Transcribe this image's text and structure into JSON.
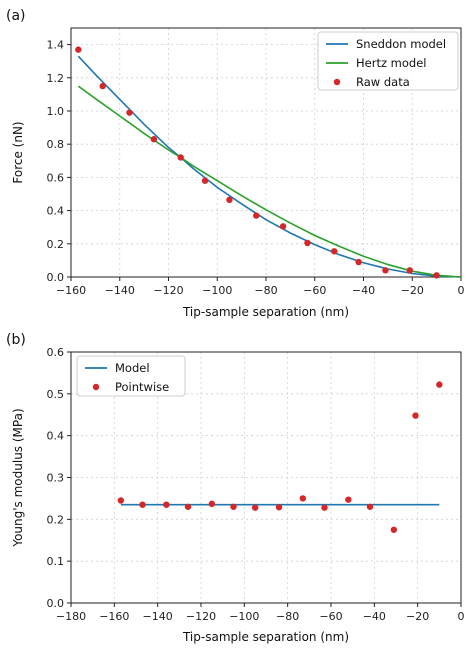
{
  "chart_data": [
    {
      "type": "line",
      "panel_label": "(a)",
      "xlabel": "Tip-sample separation (nm)",
      "ylabel": "Force (nN)",
      "xlim": [
        -160,
        0
      ],
      "ylim": [
        0,
        1.5
      ],
      "xticks": [
        -160,
        -140,
        -120,
        -100,
        -80,
        -60,
        -40,
        -20,
        0
      ],
      "xtick_labels": [
        "−160",
        "−140",
        "−120",
        "−100",
        "−80",
        "−60",
        "−40",
        "−20",
        "0"
      ],
      "yticks": [
        0.0,
        0.2,
        0.4,
        0.6,
        0.8,
        1.0,
        1.2,
        1.4
      ],
      "ytick_labels": [
        "0.0",
        "0.2",
        "0.4",
        "0.6",
        "0.8",
        "1.0",
        "1.2",
        "1.4"
      ],
      "grid": true,
      "legend": "top-right",
      "series": [
        {
          "name": "Sneddon model",
          "kind": "line",
          "color": "#1f77b4",
          "x": [
            -157,
            -150,
            -140,
            -130,
            -120,
            -115,
            -110,
            -100,
            -90,
            -80,
            -70,
            -60,
            -50,
            -40,
            -30,
            -20,
            -10,
            0
          ],
          "y": [
            1.33,
            1.22,
            1.07,
            0.92,
            0.78,
            0.72,
            0.655,
            0.54,
            0.44,
            0.345,
            0.265,
            0.195,
            0.135,
            0.086,
            0.048,
            0.021,
            0.005,
            0.0
          ]
        },
        {
          "name": "Hertz model",
          "kind": "line",
          "color": "#2ca02c",
          "x": [
            -157,
            -150,
            -140,
            -130,
            -120,
            -115,
            -110,
            -100,
            -90,
            -80,
            -70,
            -60,
            -50,
            -40,
            -30,
            -20,
            -10,
            0
          ],
          "y": [
            1.15,
            1.075,
            0.97,
            0.865,
            0.765,
            0.72,
            0.67,
            0.58,
            0.49,
            0.405,
            0.325,
            0.25,
            0.185,
            0.125,
            0.075,
            0.035,
            0.01,
            0.0
          ]
        },
        {
          "name": "Raw data",
          "kind": "scatter",
          "color": "#d62728",
          "x": [
            -157,
            -147,
            -136,
            -126,
            -115,
            -105,
            -95,
            -84,
            -73,
            -63,
            -52,
            -42,
            -31,
            -21,
            -10
          ],
          "y": [
            1.37,
            1.15,
            0.99,
            0.83,
            0.72,
            0.58,
            0.465,
            0.37,
            0.305,
            0.205,
            0.155,
            0.09,
            0.04,
            0.04,
            0.01
          ]
        }
      ]
    },
    {
      "type": "scatter",
      "panel_label": "(b)",
      "xlabel": "Tip-sample separation (nm)",
      "ylabel": "Young's modulus (MPa)",
      "xlim": [
        -180,
        0
      ],
      "ylim": [
        0,
        0.6
      ],
      "xticks": [
        -180,
        -160,
        -140,
        -120,
        -100,
        -80,
        -60,
        -40,
        -20,
        0
      ],
      "xtick_labels": [
        "−180",
        "−160",
        "−140",
        "−120",
        "−100",
        "−80",
        "−60",
        "−40",
        "−20",
        "0"
      ],
      "yticks": [
        0.0,
        0.1,
        0.2,
        0.3,
        0.4,
        0.5,
        0.6
      ],
      "ytick_labels": [
        "0.0",
        "0.1",
        "0.2",
        "0.3",
        "0.4",
        "0.5",
        "0.6"
      ],
      "grid": true,
      "legend": "top-left",
      "series": [
        {
          "name": "Model",
          "kind": "line",
          "color": "#1f77b4",
          "x": [
            -157,
            -10
          ],
          "y": [
            0.235,
            0.235
          ]
        },
        {
          "name": "Pointwise",
          "kind": "scatter",
          "color": "#d62728",
          "x": [
            -157,
            -147,
            -136,
            -126,
            -115,
            -105,
            -95,
            -84,
            -73,
            -63,
            -52,
            -42,
            -31,
            -21,
            -10
          ],
          "y": [
            0.245,
            0.235,
            0.235,
            0.23,
            0.237,
            0.23,
            0.228,
            0.229,
            0.25,
            0.228,
            0.247,
            0.23,
            0.175,
            0.448,
            0.522
          ]
        }
      ]
    }
  ]
}
